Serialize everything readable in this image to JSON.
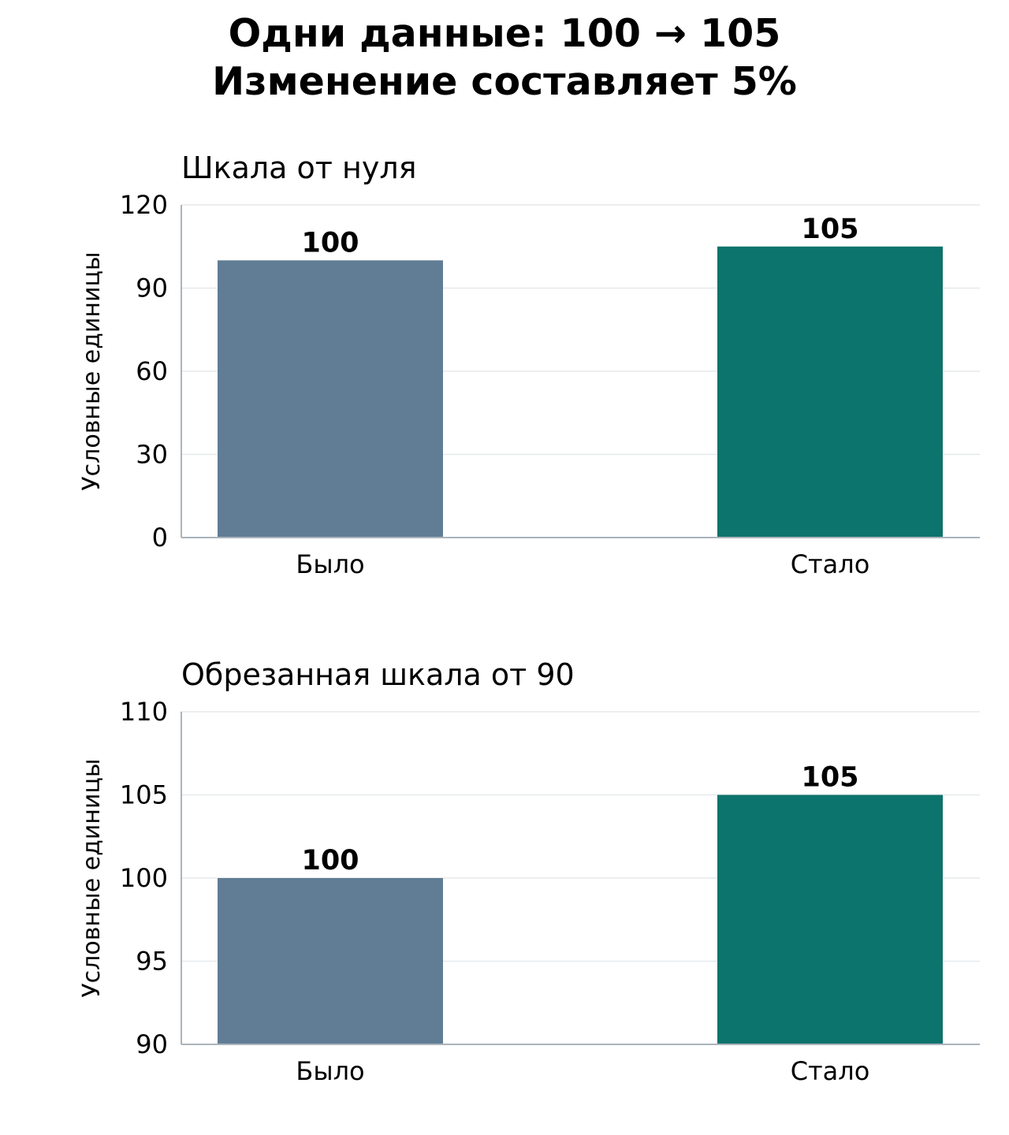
{
  "suptitle": {
    "line1": "Одни данные: 100 → 105",
    "line2": "Изменение составляет 5%"
  },
  "colors": {
    "before": "#607d95",
    "after": "#0d736d"
  },
  "chart_data": [
    {
      "type": "bar",
      "title": "Шкала от нуля",
      "ylabel": "Условные единицы",
      "categories": [
        "Было",
        "Стало"
      ],
      "values": [
        100,
        105
      ],
      "value_labels": [
        "100",
        "105"
      ],
      "ylim": [
        0,
        120
      ],
      "yticks": [
        0,
        30,
        60,
        90,
        120
      ],
      "grid": true
    },
    {
      "type": "bar",
      "title": "Обрезанная шкала от 90",
      "ylabel": "Условные единицы",
      "categories": [
        "Было",
        "Стало"
      ],
      "values": [
        100,
        105
      ],
      "value_labels": [
        "100",
        "105"
      ],
      "ylim": [
        90,
        110
      ],
      "yticks": [
        90,
        95,
        100,
        105,
        110
      ],
      "grid": true
    }
  ]
}
